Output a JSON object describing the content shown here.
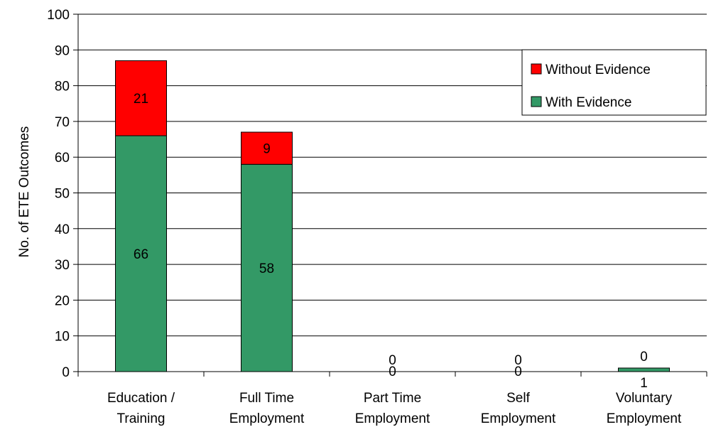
{
  "chart_data": {
    "type": "bar",
    "stacked": true,
    "title": "",
    "xlabel": "",
    "ylabel": "No. of ETE Outcomes",
    "ylim": [
      0,
      100
    ],
    "yticks": [
      0,
      10,
      20,
      30,
      40,
      50,
      60,
      70,
      80,
      90,
      100
    ],
    "grid": true,
    "legend_position": "top-right",
    "categories": [
      [
        "Education /",
        "Training"
      ],
      [
        "Full Time",
        "Employment"
      ],
      [
        "Part Time",
        "Employment"
      ],
      [
        "Self",
        "Employment"
      ],
      [
        "Voluntary",
        "Employment"
      ]
    ],
    "series": [
      {
        "name": "With Evidence",
        "color": "#339966",
        "values": [
          66,
          58,
          0,
          0,
          1
        ]
      },
      {
        "name": "Without Evidence",
        "color": "#ff0000",
        "values": [
          21,
          9,
          0,
          0,
          0
        ]
      }
    ],
    "legend_order": [
      1,
      0
    ]
  }
}
